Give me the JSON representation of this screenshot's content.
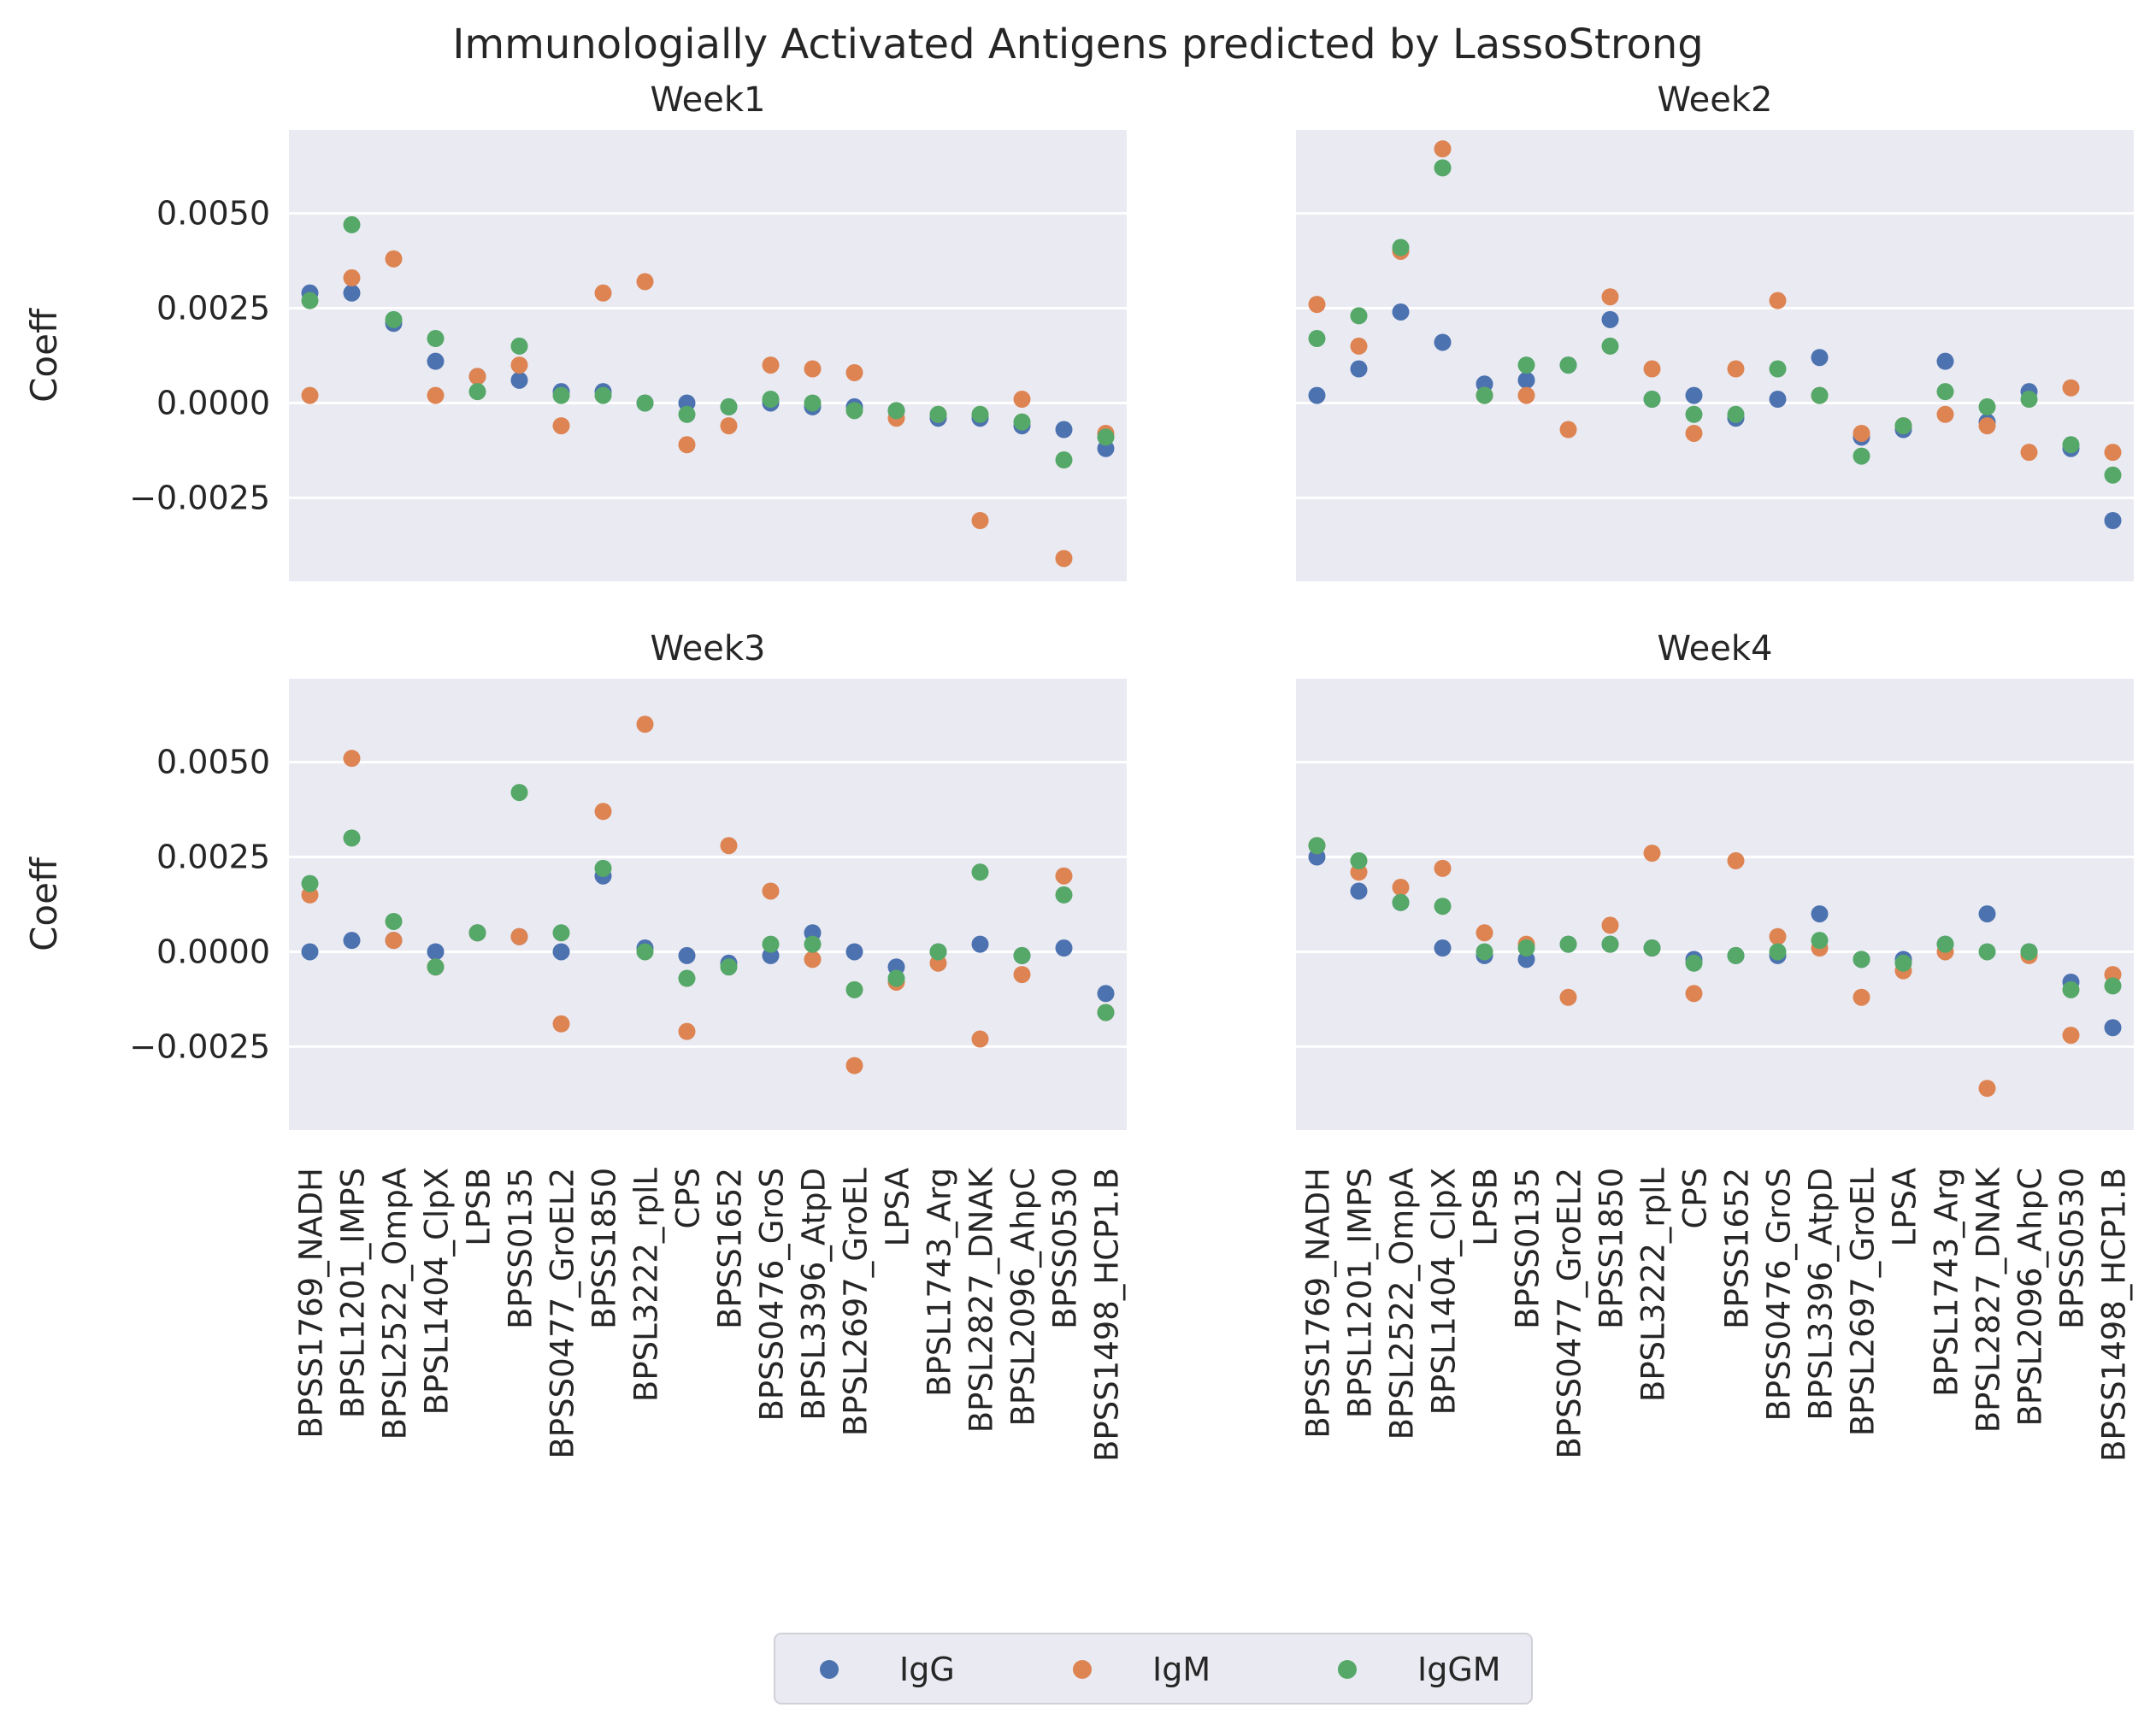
{
  "chart_data": {
    "type": "scatter",
    "title": "Immunologially Activated Antigens predicted by LassoStrong",
    "ylabel": "Coeff",
    "ylim": [
      -0.0047,
      0.0072
    ],
    "yticks": [
      0.005,
      0.0025,
      0.0,
      -0.0025
    ],
    "ytick_labels": [
      "0.0050",
      "0.0025",
      "0.0000",
      "−0.0025"
    ],
    "grid": true,
    "legend_position": "bottom-center",
    "colors": {
      "IgG": "#4c72b0",
      "IgM": "#dd8452",
      "IgGM": "#55a868"
    },
    "categories": [
      "BPSS1769_NADH",
      "BPSL1201_IMPS",
      "BPSL2522_OmpA",
      "BPSL1404_ClpX",
      "LPSB",
      "BPSS0135",
      "BPSS0477_GroEL2",
      "BPSS1850",
      "BPSL3222_rplL",
      "CPS",
      "BPSS1652",
      "BPSS0476_GroS",
      "BPSL3396_AtpD",
      "BPSL2697_GroEL",
      "LPSA",
      "BPSL1743_Arg",
      "BPSL2827_DNAK",
      "BPSL2096_AhpC",
      "BPSS0530",
      "BPSS1498_HCP1.B"
    ],
    "panels": [
      {
        "title": "Week1",
        "series": [
          {
            "name": "IgG",
            "values": [
              0.0029,
              0.0029,
              0.0021,
              0.0011,
              0.0007,
              0.0006,
              0.0003,
              0.0003,
              0.0,
              0.0,
              -0.0001,
              0.0,
              -0.0001,
              -0.0001,
              -0.0002,
              -0.0004,
              -0.0004,
              -0.0006,
              -0.0007,
              -0.0012
            ]
          },
          {
            "name": "IgM",
            "values": [
              0.0002,
              0.0033,
              0.0038,
              0.0002,
              0.0007,
              0.001,
              -0.0006,
              0.0029,
              0.0032,
              -0.0011,
              -0.0006,
              0.001,
              0.0009,
              0.0008,
              -0.0004,
              -0.0003,
              -0.0031,
              0.0001,
              -0.0041,
              -0.0008
            ]
          },
          {
            "name": "IgGM",
            "values": [
              0.0027,
              0.0047,
              0.0022,
              0.0017,
              0.0003,
              0.0015,
              0.0002,
              0.0002,
              0.0,
              -0.0003,
              -0.0001,
              0.0001,
              0.0,
              -0.0002,
              -0.0002,
              -0.0003,
              -0.0003,
              -0.0005,
              -0.0015,
              -0.0009
            ]
          }
        ]
      },
      {
        "title": "Week2",
        "series": [
          {
            "name": "IgG",
            "values": [
              0.0002,
              0.0009,
              0.0024,
              0.0016,
              0.0005,
              0.0006,
              0.001,
              0.0022,
              0.0001,
              0.0002,
              -0.0004,
              0.0001,
              0.0012,
              -0.0009,
              -0.0007,
              0.0011,
              -0.0005,
              0.0003,
              -0.0012,
              -0.0031
            ]
          },
          {
            "name": "IgM",
            "values": [
              0.0026,
              0.0015,
              0.004,
              0.0067,
              0.0002,
              0.0002,
              -0.0007,
              0.0028,
              0.0009,
              -0.0008,
              0.0009,
              0.0027,
              0.0002,
              -0.0008,
              -0.0006,
              -0.0003,
              -0.0006,
              -0.0013,
              0.0004,
              -0.0013
            ]
          },
          {
            "name": "IgGM",
            "values": [
              0.0017,
              0.0023,
              0.0041,
              0.0062,
              0.0002,
              0.001,
              0.001,
              0.0015,
              0.0001,
              -0.0003,
              -0.0003,
              0.0009,
              0.0002,
              -0.0014,
              -0.0006,
              0.0003,
              -0.0001,
              0.0001,
              -0.0011,
              -0.0019
            ]
          }
        ]
      },
      {
        "title": "Week3",
        "series": [
          {
            "name": "IgG",
            "values": [
              0.0,
              0.0003,
              0.0003,
              0.0,
              0.0005,
              0.0004,
              0.0,
              0.002,
              0.0001,
              -0.0001,
              -0.0003,
              -0.0001,
              0.0005,
              0.0,
              -0.0004,
              0.0,
              0.0002,
              -0.0001,
              0.0001,
              -0.0011
            ]
          },
          {
            "name": "IgM",
            "values": [
              0.0015,
              0.0051,
              0.0003,
              -0.0004,
              0.0005,
              0.0004,
              -0.0019,
              0.0037,
              0.006,
              -0.0021,
              0.0028,
              0.0016,
              -0.0002,
              -0.003,
              -0.0008,
              -0.0003,
              -0.0023,
              -0.0006,
              0.002,
              -0.0016
            ]
          },
          {
            "name": "IgGM",
            "values": [
              0.0018,
              0.003,
              0.0008,
              -0.0004,
              0.0005,
              0.0042,
              0.0005,
              0.0022,
              0.0,
              -0.0007,
              -0.0004,
              0.0002,
              0.0002,
              -0.001,
              -0.0007,
              0.0,
              0.0021,
              -0.0001,
              0.0015,
              -0.0016
            ]
          }
        ]
      },
      {
        "title": "Week4",
        "series": [
          {
            "name": "IgG",
            "values": [
              0.0025,
              0.0016,
              0.0013,
              0.0001,
              -0.0001,
              -0.0002,
              0.0002,
              0.0002,
              0.0001,
              -0.0002,
              -0.0001,
              -0.0001,
              0.001,
              -0.0002,
              -0.0002,
              0.0002,
              0.001,
              0.0,
              -0.0008,
              -0.002
            ]
          },
          {
            "name": "IgM",
            "values": [
              0.0028,
              0.0021,
              0.0017,
              0.0022,
              0.0005,
              0.0002,
              -0.0012,
              0.0007,
              0.0026,
              -0.0011,
              0.0024,
              0.0004,
              0.0001,
              -0.0012,
              -0.0005,
              0.0,
              -0.0036,
              -0.0001,
              -0.0022,
              -0.0006
            ]
          },
          {
            "name": "IgGM",
            "values": [
              0.0028,
              0.0024,
              0.0013,
              0.0012,
              0.0,
              0.0001,
              0.0002,
              0.0002,
              0.0001,
              -0.0003,
              -0.0001,
              0.0,
              0.0003,
              -0.0002,
              -0.0003,
              0.0002,
              0.0,
              0.0,
              -0.001,
              -0.0009
            ]
          }
        ]
      }
    ]
  }
}
